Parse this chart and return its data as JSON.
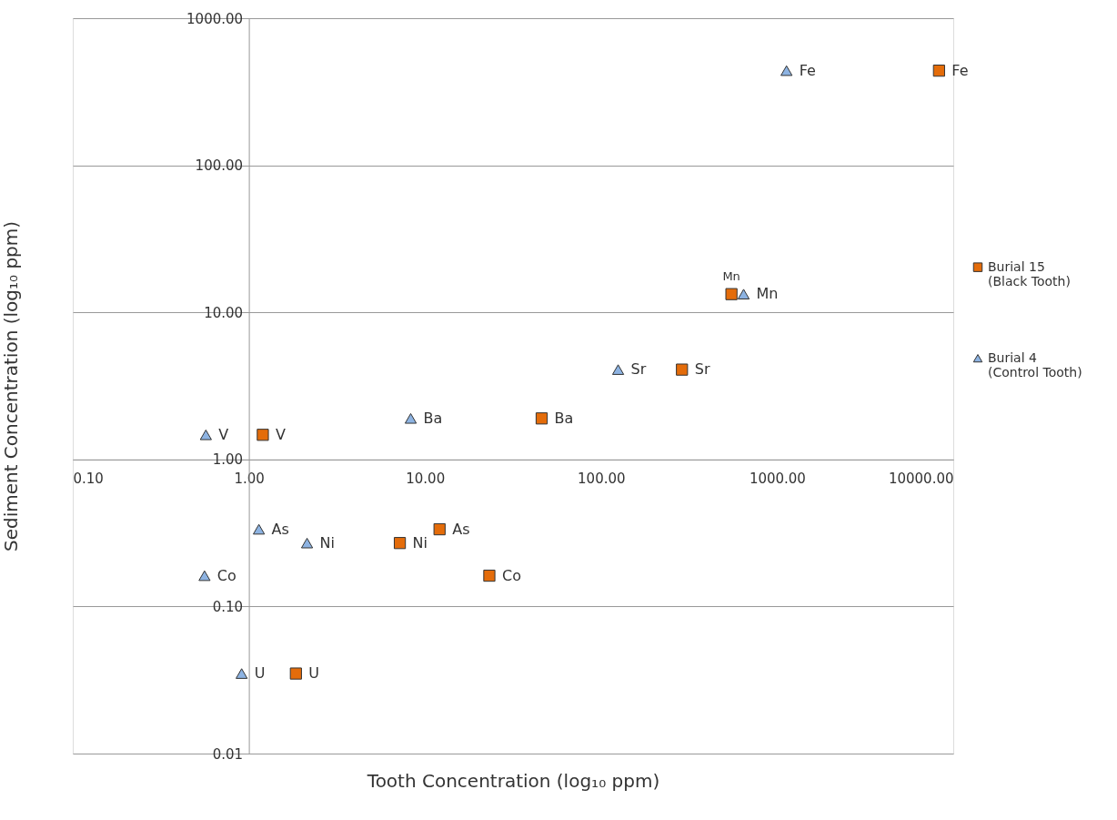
{
  "chart_data": {
    "type": "scatter",
    "xlabel": "Tooth Concentration (log₁₀ ppm)",
    "ylabel": "Sediment Concentration (log₁₀ ppm)",
    "log": "xy",
    "grid": "y",
    "legend": "right",
    "xlim": [
      0.1,
      10000
    ],
    "ylim": [
      0.01,
      1000
    ],
    "xticks": [
      {
        "value": 0.1,
        "label": "0.10"
      },
      {
        "value": 1,
        "label": "1.00"
      },
      {
        "value": 10,
        "label": "10.00"
      },
      {
        "value": 100,
        "label": "100.00"
      },
      {
        "value": 1000,
        "label": "1000.00"
      },
      {
        "value": 10000,
        "label": "10000.00"
      }
    ],
    "yticks": [
      {
        "value": 0.01,
        "label": "0.01"
      },
      {
        "value": 0.1,
        "label": "0.10"
      },
      {
        "value": 1,
        "label": "1.00"
      },
      {
        "value": 10,
        "label": "10.00"
      },
      {
        "value": 100,
        "label": "100.00"
      },
      {
        "value": 1000,
        "label": "1000.00"
      }
    ],
    "series": [
      {
        "name": "Burial 15 (Black Tooth)",
        "color": "#e46c0a",
        "marker": "square",
        "x": [
          8300,
          550,
          288,
          46,
          1.2,
          12.1,
          7.2,
          23.2,
          1.85
        ],
        "values": [
          440,
          13.3,
          4.08,
          1.9,
          1.47,
          0.335,
          0.27,
          0.162,
          0.035
        ]
      },
      {
        "name": "Burial 4 (Control Tooth)",
        "color": "#8db3e2",
        "marker": "triangle",
        "x": [
          1130,
          645,
          125,
          8.3,
          0.57,
          1.14,
          2.14,
          0.56,
          0.91
        ],
        "values": [
          440,
          13.3,
          4.08,
          1.9,
          1.47,
          0.335,
          0.27,
          0.162,
          0.035
        ]
      }
    ],
    "annotations": [
      {
        "text": "Fe",
        "x": 8300,
        "y": 440
      },
      {
        "text": "Mn",
        "x": 550,
        "y": 13.3
      },
      {
        "text": "Sr",
        "x": 288,
        "y": 4.08
      },
      {
        "text": "Ba",
        "x": 46,
        "y": 1.9
      },
      {
        "text": "V",
        "x": 1.2,
        "y": 1.47
      },
      {
        "text": "As",
        "x": 12.1,
        "y": 0.335
      },
      {
        "text": "Ni",
        "x": 7.2,
        "y": 0.27
      },
      {
        "text": "Co",
        "x": 23.2,
        "y": 0.162
      },
      {
        "text": "U",
        "x": 1.85,
        "y": 0.035
      },
      {
        "text": "Fe",
        "x": 1130,
        "y": 440
      },
      {
        "text": "Mn",
        "x": 645,
        "y": 13.3
      },
      {
        "text": "Sr",
        "x": 125,
        "y": 4.08
      },
      {
        "text": "Ba",
        "x": 8.3,
        "y": 1.9
      },
      {
        "text": "V",
        "x": 0.57,
        "y": 1.47
      },
      {
        "text": "As",
        "x": 1.14,
        "y": 0.335
      },
      {
        "text": "Ni",
        "x": 2.14,
        "y": 0.27
      },
      {
        "text": "Co",
        "x": 0.56,
        "y": 0.162
      },
      {
        "text": "U",
        "x": 0.91,
        "y": 0.035
      }
    ]
  }
}
